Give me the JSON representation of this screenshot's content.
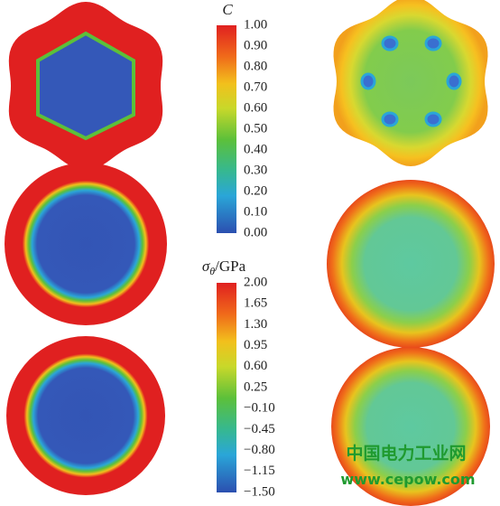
{
  "colorbars": [
    {
      "symbol": "C",
      "ticks": [
        "1.00",
        "0.90",
        "0.80",
        "0.70",
        "0.60",
        "0.50",
        "0.40",
        "0.30",
        "0.20",
        "0.10",
        "0.00"
      ]
    },
    {
      "symbol": "σ",
      "subscript": "θ",
      "unit": "/GPa",
      "ticks": [
        "2.00",
        "1.65",
        "1.30",
        "0.95",
        "0.60",
        "0.25",
        "−0.10",
        "−0.45",
        "−0.80",
        "−1.15",
        "−1.50"
      ]
    }
  ],
  "watermark": {
    "name": "中国电力工业网",
    "url": "www.cepow.com"
  }
}
